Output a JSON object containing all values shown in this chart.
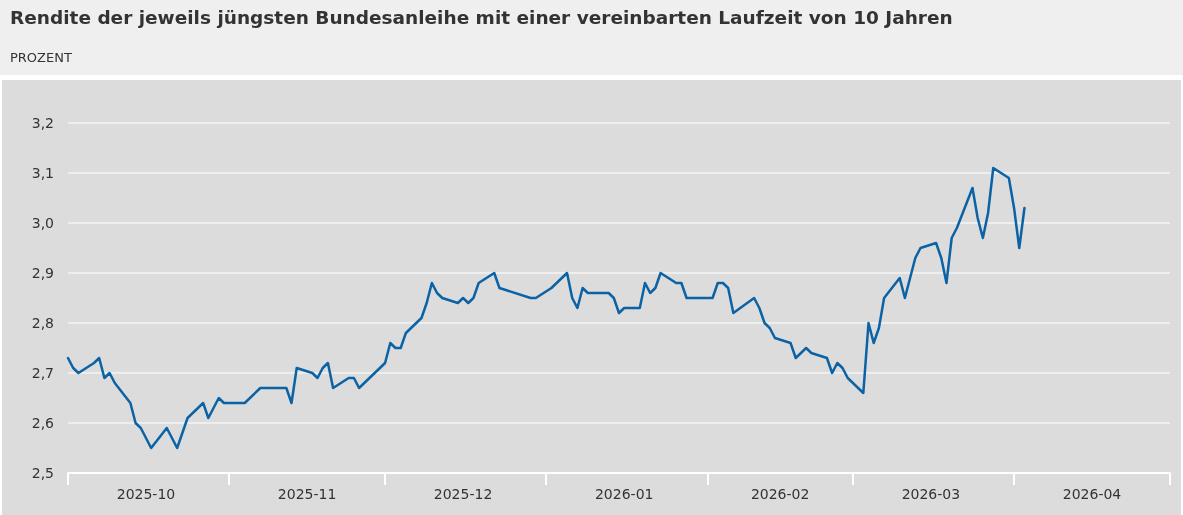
{
  "chart_data": {
    "type": "line",
    "title": "Rendite der jeweils jüngsten Bundesanleihe mit einer vereinbarten Laufzeit von 10 Jahren",
    "subtitle": "PROZENT",
    "x": [
      "2025-10-01",
      "2025-10-02",
      "2025-10-03",
      "2025-10-06",
      "2025-10-07",
      "2025-10-08",
      "2025-10-09",
      "2025-10-10",
      "2025-10-13",
      "2025-10-14",
      "2025-10-15",
      "2025-10-17",
      "2025-10-20",
      "2025-10-22",
      "2025-10-24",
      "2025-10-27",
      "2025-10-28",
      "2025-10-30",
      "2025-10-31",
      "2025-11-04",
      "2025-11-07",
      "2025-11-12",
      "2025-11-13",
      "2025-11-14",
      "2025-11-17",
      "2025-11-18",
      "2025-11-19",
      "2025-11-20",
      "2025-11-21",
      "2025-11-24",
      "2025-11-25",
      "2025-11-26",
      "2025-12-01",
      "2025-12-02",
      "2025-12-03",
      "2025-12-04",
      "2025-12-05",
      "2025-12-08",
      "2025-12-09",
      "2025-12-10",
      "2025-12-11",
      "2025-12-12",
      "2025-12-15",
      "2025-12-16",
      "2025-12-17",
      "2025-12-18",
      "2025-12-19",
      "2025-12-22",
      "2025-12-23",
      "2025-12-29",
      "2025-12-30",
      "2026-01-02",
      "2026-01-05",
      "2026-01-06",
      "2026-01-07",
      "2026-01-08",
      "2026-01-09",
      "2026-01-13",
      "2026-01-14",
      "2026-01-15",
      "2026-01-16",
      "2026-01-19",
      "2026-01-20",
      "2026-01-21",
      "2026-01-22",
      "2026-01-23",
      "2026-01-26",
      "2026-01-27",
      "2026-01-28",
      "2026-02-02",
      "2026-02-03",
      "2026-02-04",
      "2026-02-05",
      "2026-02-06",
      "2026-02-10",
      "2026-02-11",
      "2026-02-12",
      "2026-02-13",
      "2026-02-14",
      "2026-02-17",
      "2026-02-18",
      "2026-02-20",
      "2026-02-21",
      "2026-02-24",
      "2026-02-25",
      "2026-02-26",
      "2026-02-27",
      "2026-02-28",
      "2026-03-03",
      "2026-03-04",
      "2026-03-05",
      "2026-03-06",
      "2026-03-07",
      "2026-03-10",
      "2026-03-11",
      "2026-03-13",
      "2026-03-14",
      "2026-03-17",
      "2026-03-18",
      "2026-03-19",
      "2026-03-20",
      "2026-03-21",
      "2026-03-24",
      "2026-03-25",
      "2026-03-26",
      "2026-03-27",
      "2026-03-28",
      "2026-03-31",
      "2026-04-01",
      "2026-04-02",
      "2026-04-03"
    ],
    "series": [
      {
        "color": "#0b62a4",
        "values": [
          2.73,
          2.71,
          2.7,
          2.72,
          2.73,
          2.69,
          2.7,
          2.68,
          2.64,
          2.6,
          2.59,
          2.55,
          2.59,
          2.55,
          2.61,
          2.64,
          2.61,
          2.65,
          2.64,
          2.64,
          2.67,
          2.67,
          2.64,
          2.71,
          2.7,
          2.69,
          2.71,
          2.72,
          2.67,
          2.69,
          2.69,
          2.67,
          2.72,
          2.76,
          2.75,
          2.75,
          2.78,
          2.81,
          2.84,
          2.88,
          2.86,
          2.85,
          2.84,
          2.85,
          2.84,
          2.85,
          2.88,
          2.9,
          2.87,
          2.85,
          2.85,
          2.87,
          2.9,
          2.85,
          2.83,
          2.87,
          2.86,
          2.86,
          2.85,
          2.82,
          2.83,
          2.83,
          2.88,
          2.86,
          2.87,
          2.9,
          2.88,
          2.88,
          2.85,
          2.85,
          2.88,
          2.88,
          2.87,
          2.82,
          2.85,
          2.83,
          2.8,
          2.79,
          2.77,
          2.76,
          2.73,
          2.75,
          2.74,
          2.73,
          2.7,
          2.72,
          2.71,
          2.69,
          2.66,
          2.8,
          2.76,
          2.79,
          2.85,
          2.89,
          2.85,
          2.93,
          2.95,
          2.96,
          2.93,
          2.88,
          2.97,
          2.99,
          3.07,
          3.01,
          2.97,
          3.02,
          3.11,
          3.09,
          3.03,
          2.95,
          3.03
        ]
      }
    ],
    "xlim": [
      "2025-10-01",
      "2026-05-01"
    ],
    "xticks": [
      {
        "value": "2025-10-01",
        "label": null
      },
      {
        "value": "2025-10-16",
        "label": "2025-10"
      },
      {
        "value": "2025-11-01",
        "label": null
      },
      {
        "value": "2025-11-16",
        "label": "2025-11"
      },
      {
        "value": "2025-12-01",
        "label": null
      },
      {
        "value": "2025-12-16",
        "label": "2025-12"
      },
      {
        "value": "2026-01-01",
        "label": null
      },
      {
        "value": "2026-01-16",
        "label": "2026-01"
      },
      {
        "value": "2026-02-01",
        "label": null
      },
      {
        "value": "2026-02-15",
        "label": "2026-02"
      },
      {
        "value": "2026-03-01",
        "label": null
      },
      {
        "value": "2026-03-16",
        "label": "2026-03"
      },
      {
        "value": "2026-04-01",
        "label": null
      },
      {
        "value": "2026-04-16",
        "label": "2026-04"
      },
      {
        "value": "2026-05-01",
        "label": null
      }
    ],
    "ylim": [
      2.5,
      3.2
    ],
    "yticks": [
      {
        "value": 2.5,
        "label": "2,5"
      },
      {
        "value": 2.6,
        "label": "2,6"
      },
      {
        "value": 2.7,
        "label": "2,7"
      },
      {
        "value": 2.8,
        "label": "2,8"
      },
      {
        "value": 2.9,
        "label": "2,9"
      },
      {
        "value": 3.0,
        "label": "3,0"
      },
      {
        "value": 3.1,
        "label": "3,1"
      },
      {
        "value": 3.2,
        "label": "3,2"
      }
    ],
    "grid": "y",
    "marker": "none",
    "line_style": "solid"
  }
}
